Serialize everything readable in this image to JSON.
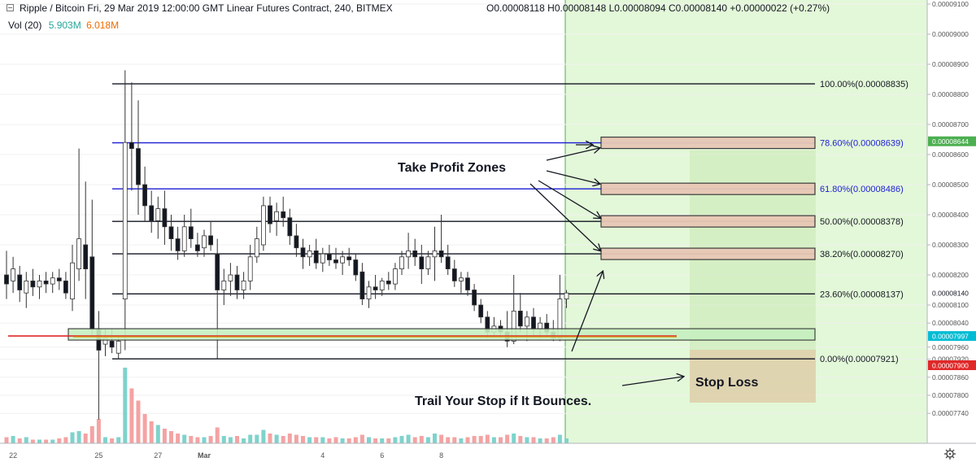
{
  "header": {
    "title": "Ripple / Bitcoin  Fri, 29 Mar 2019 12:00:00 GMT  Linear Futures Contract, 240, BITMEX",
    "ohlc": "O0.00008118  H0.00008148  L0.00008094  C0.00008140  +0.00000022 (+0.27%)",
    "volume_label": "Vol (20)",
    "volume_value1": "5.903M",
    "volume_value2": "6.018M"
  },
  "colors": {
    "up": "#26a69a",
    "down": "#131722",
    "vol_up": "#7ed3cc",
    "vol_down": "#f4a3a3",
    "green_zone": "#e3f8d8",
    "fib_blue": "#1c1cd6",
    "fib_black": "#131722",
    "profit_box": "#e8c7b6",
    "stop_box": "#dfe3c4",
    "highlight_box": "#c7f0c0",
    "price_red": "#e02828",
    "price_cyan": "#00bcd4",
    "price_green": "#4caf50"
  },
  "chart_data": {
    "type": "candlestick",
    "symbol": "XRPH19",
    "interval": "240",
    "price_axis": {
      "ticks": [
        "0.00009100",
        "0.00009000",
        "0.00008900",
        "0.00008800",
        "0.00008700",
        "0.00008600",
        "0.00008500",
        "0.00008400",
        "0.00008300",
        "0.00008200",
        "0.00008100",
        "0.00008040",
        "0.00007960",
        "0.00007920",
        "0.00007860",
        "0.00007800",
        "0.00007740"
      ],
      "tick_values": [
        9.1e-05,
        9e-05,
        8.9e-05,
        8.8e-05,
        8.7e-05,
        8.6e-05,
        8.5e-05,
        8.4e-05,
        8.3e-05,
        8.2e-05,
        8.1e-05,
        8.04e-05,
        7.96e-05,
        7.92e-05,
        7.86e-05,
        7.8e-05,
        7.74e-05
      ],
      "labels": [
        {
          "text": "0.00008644",
          "value": 8.644e-05,
          "style": "green"
        },
        {
          "text": "0.00008140",
          "value": 8.14e-05,
          "style": "plain"
        },
        {
          "text": "0.00007997",
          "value": 7.997e-05,
          "style": "cyan"
        },
        {
          "text": "0.00007900",
          "value": 7.9e-05,
          "style": "red"
        }
      ]
    },
    "time_axis": {
      "labels": [
        "22",
        "25",
        "27",
        "Mar",
        "4",
        "6",
        "8"
      ],
      "label_bars": [
        1,
        14,
        23,
        30,
        48,
        57,
        66
      ]
    },
    "bars": [
      {
        "o": 8.2e-05,
        "h": 8.28e-05,
        "l": 8.12e-05,
        "c": 8.17e-05,
        "v": 0.05
      },
      {
        "o": 8.18e-05,
        "h": 8.26e-05,
        "l": 8.14e-05,
        "c": 8.22e-05,
        "v": 0.06
      },
      {
        "o": 8.2e-05,
        "h": 8.23e-05,
        "l": 8.11e-05,
        "c": 8.15e-05,
        "v": 0.04
      },
      {
        "o": 8.14e-05,
        "h": 8.21e-05,
        "l": 8.09e-05,
        "c": 8.18e-05,
        "v": 0.05
      },
      {
        "o": 8.18e-05,
        "h": 8.22e-05,
        "l": 8.13e-05,
        "c": 8.16e-05,
        "v": 0.03
      },
      {
        "o": 8.16e-05,
        "h": 8.2e-05,
        "l": 8.12e-05,
        "c": 8.18e-05,
        "v": 0.03
      },
      {
        "o": 8.18e-05,
        "h": 8.21e-05,
        "l": 8.14e-05,
        "c": 8.17e-05,
        "v": 0.03
      },
      {
        "o": 8.17e-05,
        "h": 8.21e-05,
        "l": 8.14e-05,
        "c": 8.19e-05,
        "v": 0.03
      },
      {
        "o": 8.19e-05,
        "h": 8.22e-05,
        "l": 8.15e-05,
        "c": 8.18e-05,
        "v": 0.04
      },
      {
        "o": 8.18e-05,
        "h": 8.21e-05,
        "l": 8.12e-05,
        "c": 8.14e-05,
        "v": 0.05
      },
      {
        "o": 8.12e-05,
        "h": 8.3e-05,
        "l": 8.08e-05,
        "c": 8.24e-05,
        "v": 0.09
      },
      {
        "o": 8.22e-05,
        "h": 8.62e-05,
        "l": 8.18e-05,
        "c": 8.32e-05,
        "v": 0.1
      },
      {
        "o": 8.3e-05,
        "h": 8.51e-05,
        "l": 8.12e-05,
        "c": 8.22e-05,
        "v": 0.08
      },
      {
        "o": 8.26e-05,
        "h": 8.45e-05,
        "l": 8e-05,
        "c": 8.02e-05,
        "v": 0.14
      },
      {
        "o": 8.02e-05,
        "h": 8.08e-05,
        "l": 7.72e-05,
        "c": 7.95e-05,
        "v": 0.2
      },
      {
        "o": 7.97e-05,
        "h": 8.02e-05,
        "l": 7.93e-05,
        "c": 7.99e-05,
        "v": 0.05
      },
      {
        "o": 7.98e-05,
        "h": 8.02e-05,
        "l": 7.94e-05,
        "c": 7.96e-05,
        "v": 0.04
      },
      {
        "o": 7.94e-05,
        "h": 8e-05,
        "l": 7.92e-05,
        "c": 7.98e-05,
        "v": 0.05
      },
      {
        "o": 8.12e-05,
        "h": 8.88e-05,
        "l": 7.95e-05,
        "c": 8.64e-05,
        "v": 0.62
      },
      {
        "o": 8.64e-05,
        "h": 8.84e-05,
        "l": 8.48e-05,
        "c": 8.62e-05,
        "v": 0.45
      },
      {
        "o": 8.62e-05,
        "h": 8.78e-05,
        "l": 8.4e-05,
        "c": 8.5e-05,
        "v": 0.35
      },
      {
        "o": 8.5e-05,
        "h": 8.56e-05,
        "l": 8.38e-05,
        "c": 8.43e-05,
        "v": 0.24
      },
      {
        "o": 8.43e-05,
        "h": 8.48e-05,
        "l": 8.34e-05,
        "c": 8.38e-05,
        "v": 0.18
      },
      {
        "o": 8.38e-05,
        "h": 8.46e-05,
        "l": 8.32e-05,
        "c": 8.42e-05,
        "v": 0.15
      },
      {
        "o": 8.42e-05,
        "h": 8.48e-05,
        "l": 8.3e-05,
        "c": 8.36e-05,
        "v": 0.12
      },
      {
        "o": 8.36e-05,
        "h": 8.4e-05,
        "l": 8.28e-05,
        "c": 8.32e-05,
        "v": 0.1
      },
      {
        "o": 8.32e-05,
        "h": 8.36e-05,
        "l": 8.25e-05,
        "c": 8.28e-05,
        "v": 0.08
      },
      {
        "o": 8.28e-05,
        "h": 8.4e-05,
        "l": 8.26e-05,
        "c": 8.36e-05,
        "v": 0.07
      },
      {
        "o": 8.36e-05,
        "h": 8.42e-05,
        "l": 8.29e-05,
        "c": 8.32e-05,
        "v": 0.06
      },
      {
        "o": 8.3e-05,
        "h": 8.34e-05,
        "l": 8.26e-05,
        "c": 8.28e-05,
        "v": 0.05
      },
      {
        "o": 8.29e-05,
        "h": 8.35e-05,
        "l": 8.26e-05,
        "c": 8.33e-05,
        "v": 0.05
      },
      {
        "o": 8.33e-05,
        "h": 8.38e-05,
        "l": 8.28e-05,
        "c": 8.3e-05,
        "v": 0.06
      },
      {
        "o": 8.27e-05,
        "h": 8.32e-05,
        "l": 7.92e-05,
        "c": 8.15e-05,
        "v": 0.13
      },
      {
        "o": 8.15e-05,
        "h": 8.22e-05,
        "l": 8.1e-05,
        "c": 8.18e-05,
        "v": 0.06
      },
      {
        "o": 8.18e-05,
        "h": 8.24e-05,
        "l": 8.13e-05,
        "c": 8.2e-05,
        "v": 0.05
      },
      {
        "o": 8.2e-05,
        "h": 8.23e-05,
        "l": 8.12e-05,
        "c": 8.15e-05,
        "v": 0.06
      },
      {
        "o": 8.15e-05,
        "h": 8.21e-05,
        "l": 8.12e-05,
        "c": 8.18e-05,
        "v": 0.04
      },
      {
        "o": 8.18e-05,
        "h": 8.3e-05,
        "l": 8.15e-05,
        "c": 8.26e-05,
        "v": 0.07
      },
      {
        "o": 8.26e-05,
        "h": 8.36e-05,
        "l": 8.24e-05,
        "c": 8.32e-05,
        "v": 0.07
      },
      {
        "o": 8.3e-05,
        "h": 8.46e-05,
        "l": 8.28e-05,
        "c": 8.43e-05,
        "v": 0.11
      },
      {
        "o": 8.43e-05,
        "h": 8.46e-05,
        "l": 8.34e-05,
        "c": 8.37e-05,
        "v": 0.08
      },
      {
        "o": 8.38e-05,
        "h": 8.44e-05,
        "l": 8.33e-05,
        "c": 8.41e-05,
        "v": 0.07
      },
      {
        "o": 8.41e-05,
        "h": 8.46e-05,
        "l": 8.36e-05,
        "c": 8.39e-05,
        "v": 0.06
      },
      {
        "o": 8.39e-05,
        "h": 8.42e-05,
        "l": 8.3e-05,
        "c": 8.33e-05,
        "v": 0.08
      },
      {
        "o": 8.33e-05,
        "h": 8.37e-05,
        "l": 8.26e-05,
        "c": 8.29e-05,
        "v": 0.07
      },
      {
        "o": 8.29e-05,
        "h": 8.32e-05,
        "l": 8.22e-05,
        "c": 8.26e-05,
        "v": 0.06
      },
      {
        "o": 8.26e-05,
        "h": 8.3e-05,
        "l": 8.23e-05,
        "c": 8.28e-05,
        "v": 0.05
      },
      {
        "o": 8.28e-05,
        "h": 8.32e-05,
        "l": 8.22e-05,
        "c": 8.24e-05,
        "v": 0.05
      },
      {
        "o": 8.24e-05,
        "h": 8.29e-05,
        "l": 8.21e-05,
        "c": 8.27e-05,
        "v": 0.05
      },
      {
        "o": 8.27e-05,
        "h": 8.3e-05,
        "l": 8.23e-05,
        "c": 8.25e-05,
        "v": 0.04
      },
      {
        "o": 8.25e-05,
        "h": 8.29e-05,
        "l": 8.22e-05,
        "c": 8.24e-05,
        "v": 0.05
      },
      {
        "o": 8.24e-05,
        "h": 8.28e-05,
        "l": 8.2e-05,
        "c": 8.26e-05,
        "v": 0.04
      },
      {
        "o": 8.26e-05,
        "h": 8.29e-05,
        "l": 8.23e-05,
        "c": 8.25e-05,
        "v": 0.04
      },
      {
        "o": 8.25e-05,
        "h": 8.27e-05,
        "l": 8.18e-05,
        "c": 8.2e-05,
        "v": 0.05
      },
      {
        "o": 8.21e-05,
        "h": 8.24e-05,
        "l": 8.1e-05,
        "c": 8.12e-05,
        "v": 0.07
      },
      {
        "o": 8.12e-05,
        "h": 8.18e-05,
        "l": 8.09e-05,
        "c": 8.16e-05,
        "v": 0.05
      },
      {
        "o": 8.16e-05,
        "h": 8.2e-05,
        "l": 8.12e-05,
        "c": 8.15e-05,
        "v": 0.04
      },
      {
        "o": 8.15e-05,
        "h": 8.19e-05,
        "l": 8.13e-05,
        "c": 8.18e-05,
        "v": 0.04
      },
      {
        "o": 8.18e-05,
        "h": 8.21e-05,
        "l": 8.15e-05,
        "c": 8.17e-05,
        "v": 0.04
      },
      {
        "o": 8.17e-05,
        "h": 8.24e-05,
        "l": 8.15e-05,
        "c": 8.22e-05,
        "v": 0.05
      },
      {
        "o": 8.22e-05,
        "h": 8.28e-05,
        "l": 8.2e-05,
        "c": 8.26e-05,
        "v": 0.06
      },
      {
        "o": 8.26e-05,
        "h": 8.34e-05,
        "l": 8.22e-05,
        "c": 8.28e-05,
        "v": 0.07
      },
      {
        "o": 8.28e-05,
        "h": 8.32e-05,
        "l": 8.23e-05,
        "c": 8.26e-05,
        "v": 0.05
      },
      {
        "o": 8.26e-05,
        "h": 8.3e-05,
        "l": 8.17e-05,
        "c": 8.22e-05,
        "v": 0.06
      },
      {
        "o": 8.22e-05,
        "h": 8.28e-05,
        "l": 8.2e-05,
        "c": 8.26e-05,
        "v": 0.05
      },
      {
        "o": 8.26e-05,
        "h": 8.36e-05,
        "l": 8.18e-05,
        "c": 8.28e-05,
        "v": 0.08
      },
      {
        "o": 8.28e-05,
        "h": 8.4e-05,
        "l": 8.24e-05,
        "c": 8.26e-05,
        "v": 0.07
      },
      {
        "o": 8.26e-05,
        "h": 8.3e-05,
        "l": 8.2e-05,
        "c": 8.22e-05,
        "v": 0.05
      },
      {
        "o": 8.22e-05,
        "h": 8.25e-05,
        "l": 8.16e-05,
        "c": 8.18e-05,
        "v": 0.05
      },
      {
        "o": 8.18e-05,
        "h": 8.21e-05,
        "l": 8.14e-05,
        "c": 8.19e-05,
        "v": 0.04
      },
      {
        "o": 8.19e-05,
        "h": 8.21e-05,
        "l": 8.13e-05,
        "c": 8.15e-05,
        "v": 0.05
      },
      {
        "o": 8.15e-05,
        "h": 8.17e-05,
        "l": 8.08e-05,
        "c": 8.1e-05,
        "v": 0.06
      },
      {
        "o": 8.1e-05,
        "h": 8.12e-05,
        "l": 8.04e-05,
        "c": 8.06e-05,
        "v": 0.06
      },
      {
        "o": 8.06e-05,
        "h": 8.08e-05,
        "l": 7.99e-05,
        "c": 8.01e-05,
        "v": 0.07
      },
      {
        "o": 8.01e-05,
        "h": 8.06e-05,
        "l": 7.99e-05,
        "c": 8.03e-05,
        "v": 0.05
      },
      {
        "o": 8.03e-05,
        "h": 8.05e-05,
        "l": 7.99e-05,
        "c": 8.01e-05,
        "v": 0.05
      },
      {
        "o": 8.01e-05,
        "h": 8.08e-05,
        "l": 7.96e-05,
        "c": 7.98e-05,
        "v": 0.07
      },
      {
        "o": 7.98e-05,
        "h": 8.2e-05,
        "l": 7.97e-05,
        "c": 8.08e-05,
        "v": 0.08
      },
      {
        "o": 8.08e-05,
        "h": 8.14e-05,
        "l": 8.01e-05,
        "c": 8.03e-05,
        "v": 0.06
      },
      {
        "o": 8.03e-05,
        "h": 8.08e-05,
        "l": 7.98e-05,
        "c": 8.06e-05,
        "v": 0.05
      },
      {
        "o": 8.06e-05,
        "h": 8.09e-05,
        "l": 8e-05,
        "c": 8.02e-05,
        "v": 0.05
      },
      {
        "o": 8.02e-05,
        "h": 8.06e-05,
        "l": 7.99e-05,
        "c": 8.04e-05,
        "v": 0.04
      },
      {
        "o": 8.04e-05,
        "h": 8.07e-05,
        "l": 8e-05,
        "c": 8.01e-05,
        "v": 0.04
      },
      {
        "o": 8.01e-05,
        "h": 8.05e-05,
        "l": 7.98e-05,
        "c": 7.99e-05,
        "v": 0.05
      },
      {
        "o": 7.99e-05,
        "h": 8.2e-05,
        "l": 7.98e-05,
        "c": 8.12e-05,
        "v": 0.07
      },
      {
        "o": 8.12e-05,
        "h": 8.15e-05,
        "l": 8.09e-05,
        "c": 8.14e-05,
        "v": 0.04
      }
    ],
    "fib_levels": [
      {
        "label": "100.00%(0.00008835)",
        "value": 8.835e-05,
        "color": "black"
      },
      {
        "label": "78.60%(0.00008639)",
        "value": 8.639e-05,
        "color": "blue"
      },
      {
        "label": "61.80%(0.00008486)",
        "value": 8.486e-05,
        "color": "blue"
      },
      {
        "label": "50.00%(0.00008378)",
        "value": 8.378e-05,
        "color": "black"
      },
      {
        "label": "38.20%(0.00008270)",
        "value": 8.27e-05,
        "color": "black"
      },
      {
        "label": "23.60%(0.00008137)",
        "value": 8.137e-05,
        "color": "black"
      },
      {
        "label": "0.00%(0.00007921)",
        "value": 7.921e-05,
        "color": "black"
      }
    ],
    "annotations": {
      "take_profit": "Take Profit Zones",
      "stop_loss": "Stop Loss",
      "trail": "Trail Your Stop if It Bounces."
    },
    "horizontal_line": {
      "value": 7.997e-05,
      "color": "red"
    }
  }
}
